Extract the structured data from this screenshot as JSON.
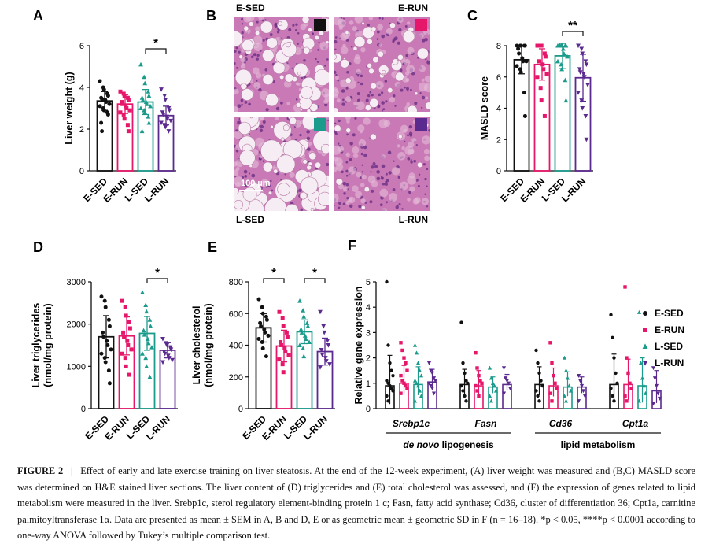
{
  "colors": {
    "E-SED": "#111111",
    "E-RUN": "#e6176a",
    "L-SED": "#1b9b8c",
    "L-RUN": "#5b2a8f"
  },
  "groups": [
    "E-SED",
    "E-RUN",
    "L-SED",
    "L-RUN"
  ],
  "chart_data": [
    {
      "panel": "A",
      "type": "bar",
      "ylabel": "Liver weight (g)",
      "ylim": [
        0,
        6
      ],
      "yticks": [
        0,
        2,
        4,
        6
      ],
      "categories": [
        "E-SED",
        "E-RUN",
        "L-SED",
        "L-RUN"
      ],
      "values": [
        3.35,
        3.2,
        3.3,
        2.65
      ],
      "errors": [
        0.45,
        0.45,
        0.6,
        0.45
      ],
      "points": [
        [
          4.3,
          4.0,
          3.9,
          3.7,
          3.6,
          3.5,
          3.45,
          3.4,
          3.3,
          3.2,
          3.1,
          3.0,
          2.9,
          2.8,
          2.7,
          2.3,
          1.9
        ],
        [
          3.8,
          3.7,
          3.6,
          3.5,
          3.4,
          3.3,
          3.2,
          3.1,
          3.0,
          2.9,
          2.8,
          2.7,
          2.5,
          2.2,
          1.9
        ],
        [
          5.1,
          4.5,
          4.2,
          3.8,
          3.6,
          3.5,
          3.4,
          3.3,
          3.2,
          3.1,
          3.0,
          2.9,
          2.8,
          2.6,
          2.3,
          1.9
        ],
        [
          3.9,
          3.6,
          3.4,
          3.0,
          2.9,
          2.8,
          2.7,
          2.6,
          2.5,
          2.4,
          2.3,
          2.2,
          2.1,
          1.9
        ]
      ],
      "significance": [
        {
          "from": 2,
          "to": 3,
          "label": "*"
        }
      ]
    },
    {
      "panel": "C",
      "type": "bar",
      "ylabel": "MASLD score",
      "ylim": [
        0,
        8
      ],
      "yticks": [
        0,
        2,
        4,
        6,
        8
      ],
      "categories": [
        "E-SED",
        "E-RUN",
        "L-SED",
        "L-RUN"
      ],
      "values": [
        7.1,
        6.8,
        7.35,
        5.95
      ],
      "errors": [
        0.9,
        1.0,
        0.8,
        1.5
      ],
      "points": [
        [
          8,
          8,
          8,
          8,
          8,
          7.8,
          7.5,
          7.2,
          7,
          7,
          6.7,
          6.5,
          6.3,
          5,
          3.5
        ],
        [
          8,
          8,
          8,
          7.5,
          7.3,
          7,
          7,
          6.8,
          6.5,
          6.2,
          6,
          5.3,
          4.5,
          3.5
        ],
        [
          8,
          8,
          8,
          8,
          8,
          8,
          8,
          7.8,
          7.5,
          7.3,
          7,
          6.8,
          6.5,
          5.8,
          4.5
        ],
        [
          8,
          7.8,
          7.5,
          7,
          6.8,
          6.5,
          6.3,
          6.2,
          6,
          5.5,
          5,
          4.5,
          4,
          3.5,
          2
        ]
      ],
      "significance": [
        {
          "from": 2,
          "to": 3,
          "label": "**"
        }
      ]
    },
    {
      "panel": "D",
      "type": "bar",
      "ylabel": "Liver triglycerides (nmol/mg protein)",
      "ylim": [
        0,
        3000
      ],
      "yticks": [
        0,
        1000,
        2000,
        3000
      ],
      "categories": [
        "E-SED",
        "E-RUN",
        "L-SED",
        "L-RUN"
      ],
      "values": [
        1700,
        1720,
        1780,
        1380
      ],
      "errors": [
        500,
        450,
        400,
        180
      ],
      "points": [
        [
          2650,
          2550,
          2400,
          2100,
          1950,
          1800,
          1700,
          1600,
          1500,
          1400,
          1300,
          1200,
          1100,
          900,
          600
        ],
        [
          2550,
          2400,
          2200,
          2050,
          1900,
          1800,
          1700,
          1600,
          1500,
          1400,
          1300,
          1200,
          1000,
          800
        ],
        [
          2750,
          2450,
          2300,
          2100,
          1950,
          1850,
          1750,
          1650,
          1550,
          1450,
          1300,
          1200,
          1000,
          750
        ],
        [
          1650,
          1550,
          1500,
          1450,
          1400,
          1350,
          1300,
          1250,
          1200,
          1150,
          1100
        ]
      ],
      "significance": [
        {
          "from": 2,
          "to": 3,
          "label": "*"
        }
      ]
    },
    {
      "panel": "E",
      "type": "bar",
      "ylabel": "Liver cholesterol (nmol/mg protein)",
      "ylim": [
        0,
        800
      ],
      "yticks": [
        0,
        200,
        400,
        600,
        800
      ],
      "categories": [
        "E-SED",
        "E-RUN",
        "L-SED",
        "L-RUN"
      ],
      "values": [
        510,
        395,
        485,
        360
      ],
      "errors": [
        90,
        100,
        75,
        85
      ],
      "points": [
        [
          690,
          640,
          600,
          580,
          560,
          540,
          520,
          500,
          480,
          460,
          440,
          420,
          380,
          330
        ],
        [
          610,
          570,
          520,
          480,
          450,
          420,
          400,
          380,
          360,
          340,
          310,
          280,
          230
        ],
        [
          680,
          620,
          580,
          540,
          520,
          500,
          480,
          460,
          440,
          420,
          400,
          380,
          330
        ],
        [
          610,
          520,
          480,
          430,
          400,
          370,
          340,
          320,
          300,
          280,
          260
        ]
      ],
      "significance": [
        {
          "from": 0,
          "to": 1,
          "label": "*"
        },
        {
          "from": 2,
          "to": 3,
          "label": "*"
        }
      ]
    },
    {
      "panel": "F",
      "type": "bar",
      "ylabel": "Relative gene expression",
      "ylim": [
        0,
        5
      ],
      "yticks": [
        0,
        1,
        2,
        3,
        4,
        5
      ],
      "genes": [
        "Srebp1c",
        "Fasn",
        "Cd36",
        "Cpt1a"
      ],
      "gene_groups": [
        "de novo lipogenesis",
        "lipid metabolism"
      ],
      "series": [
        {
          "name": "E-SED",
          "values": [
            0.9,
            0.95,
            0.95,
            0.95
          ],
          "errors": [
            1.2,
            0.6,
            0.7,
            1.2
          ]
        },
        {
          "name": "E-RUN",
          "values": [
            1.0,
            0.9,
            0.9,
            0.95
          ],
          "errors": [
            0.7,
            0.6,
            0.7,
            1.0
          ]
        },
        {
          "name": "L-SED",
          "values": [
            0.95,
            0.85,
            0.85,
            0.9
          ],
          "errors": [
            0.7,
            0.4,
            0.6,
            1.1
          ]
        },
        {
          "name": "L-RUN",
          "values": [
            1.05,
            0.95,
            0.85,
            0.7
          ],
          "errors": [
            0.5,
            0.4,
            0.4,
            0.8
          ]
        }
      ],
      "points": [
        [
          [
            5.0,
            2.5,
            1.8,
            1.5,
            1.3,
            1.1,
            1.0,
            0.9,
            0.8,
            0.7,
            0.5,
            0.3
          ],
          [
            2.6,
            2.3,
            2.0,
            1.8,
            1.5,
            1.3,
            1.1,
            1.0,
            0.9,
            0.8,
            0.6
          ],
          [
            2.5,
            2.2,
            1.8,
            1.5,
            1.3,
            1.1,
            1.0,
            0.9,
            0.7,
            0.5,
            0.3
          ],
          [
            1.8,
            1.5,
            1.4,
            1.2,
            1.1,
            1.0,
            0.9,
            0.8,
            0.6
          ]
        ],
        [
          [
            3.4,
            1.8,
            1.4,
            1.1,
            1.0,
            0.9,
            0.7,
            0.5,
            0.3
          ],
          [
            2.2,
            1.6,
            1.3,
            1.1,
            1.0,
            0.9,
            0.7,
            0.5
          ],
          [
            1.6,
            1.2,
            1.0,
            0.9,
            0.7,
            0.5,
            0.3
          ],
          [
            1.6,
            1.2,
            1.1,
            1.0,
            0.8,
            0.6
          ]
        ],
        [
          [
            2.3,
            1.8,
            1.4,
            1.1,
            0.9,
            0.7,
            0.5,
            0.3
          ],
          [
            2.6,
            1.8,
            1.3,
            1.0,
            0.8,
            0.6,
            0.3
          ],
          [
            2.0,
            1.5,
            1.2,
            0.9,
            0.7,
            0.5,
            0.3
          ],
          [
            1.3,
            1.1,
            0.9,
            0.7,
            0.5,
            0.3
          ]
        ],
        [
          [
            3.7,
            2.8,
            2.0,
            1.4,
            1.0,
            0.8,
            0.5,
            0.3
          ],
          [
            4.8,
            2.0,
            1.4,
            1.0,
            0.8,
            0.5,
            0.3
          ],
          [
            3.8,
            1.8,
            1.2,
            0.9,
            0.6,
            0.3
          ],
          [
            1.6,
            1.2,
            0.9,
            0.6,
            0.4,
            0.2
          ]
        ]
      ]
    }
  ],
  "histology": {
    "panel": "B",
    "labels": [
      "E-SED",
      "E-RUN",
      "L-SED",
      "L-RUN"
    ],
    "scale_bar": "100 µm"
  },
  "panel_letters": [
    "A",
    "B",
    "C",
    "D",
    "E",
    "F"
  ],
  "caption": {
    "label": "FIGURE 2",
    "sep": "|",
    "text": "Effect of early and late exercise training on liver steatosis. At the end of the 12-week experiment, (A) liver weight was measured and (B,C) MASLD score was determined on H&E stained liver sections. The liver content of (D) triglycerides and (E) total cholesterol was assessed, and (F) the expression of genes related to lipid metabolism were measured in the liver. Srebp1c, sterol regulatory element-binding protein 1 c; Fasn, fatty acid synthase; Cd36, cluster of differentiation 36; Cpt1a, carnitine palmitoyltransferase 1α. Data are presented as mean ± SEM in A, B and D, E or as geometric mean ± geometric SD in F (n = 16–18). *p < 0.05, ****p < 0.0001 according to one-way ANOVA followed by Tukey’s multiple comparison test."
  }
}
